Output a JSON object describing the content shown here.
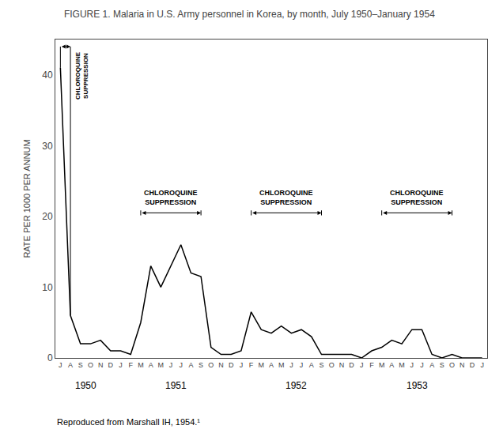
{
  "chart_data": {
    "type": "line",
    "title": "FIGURE 1. Malaria in U.S. Army personnel in Korea, by month, July 1950–January 1954",
    "ylabel": "RATE PER 1000 PER ANNUM",
    "categories": [
      "J",
      "A",
      "S",
      "O",
      "N",
      "D",
      "J",
      "F",
      "M",
      "A",
      "M",
      "J",
      "J",
      "A",
      "S",
      "O",
      "N",
      "D",
      "J",
      "F",
      "M",
      "A",
      "M",
      "J",
      "J",
      "A",
      "S",
      "O",
      "N",
      "D",
      "J",
      "F",
      "M",
      "A",
      "M",
      "J",
      "J",
      "A",
      "S",
      "O",
      "N",
      "D",
      "J"
    ],
    "values": [
      41.0,
      6.0,
      2.0,
      2.0,
      2.5,
      1.0,
      1.0,
      0.5,
      5.0,
      13.0,
      10.0,
      13.0,
      16.0,
      12.0,
      11.5,
      1.5,
      0.5,
      0.5,
      1.0,
      6.5,
      4.0,
      3.5,
      4.5,
      3.5,
      4.0,
      3.0,
      0.5,
      0.5,
      0.5,
      0.5,
      0.0,
      1.0,
      1.5,
      2.5,
      2.0,
      4.0,
      4.0,
      0.5,
      0.0,
      0.5,
      0.0,
      0.0,
      0.0
    ],
    "color": "#000000",
    "ylim": [
      0,
      45
    ],
    "yticks": [
      0,
      10,
      20,
      30,
      40
    ],
    "grid": false,
    "annotations": [
      {
        "text": "1950",
        "x": 2.5
      },
      {
        "text": "1951",
        "x": 11.5
      },
      {
        "text": "1952",
        "x": 23.5
      },
      {
        "text": "1953",
        "x": 35.5
      },
      {
        "text": "CHLOROQUINE\nSUPPRESSION",
        "x1": 8,
        "x2": 14,
        "y": 20.5
      },
      {
        "text": "CHLOROQUINE\nSUPPRESSION",
        "x1": 19,
        "x2": 26,
        "y": 20.5
      },
      {
        "text": "CHLOROQUINE\nSUPPRESSION",
        "x1": 32,
        "x2": 39,
        "y": 20.5
      },
      {
        "text": "CHLOROQUINE\nSUPPRESSION",
        "x1": 0,
        "x2": 1,
        "y": 44.0
      },
      {
        "text": "Reproduced from Marshall IH, 1954.¹"
      }
    ]
  }
}
